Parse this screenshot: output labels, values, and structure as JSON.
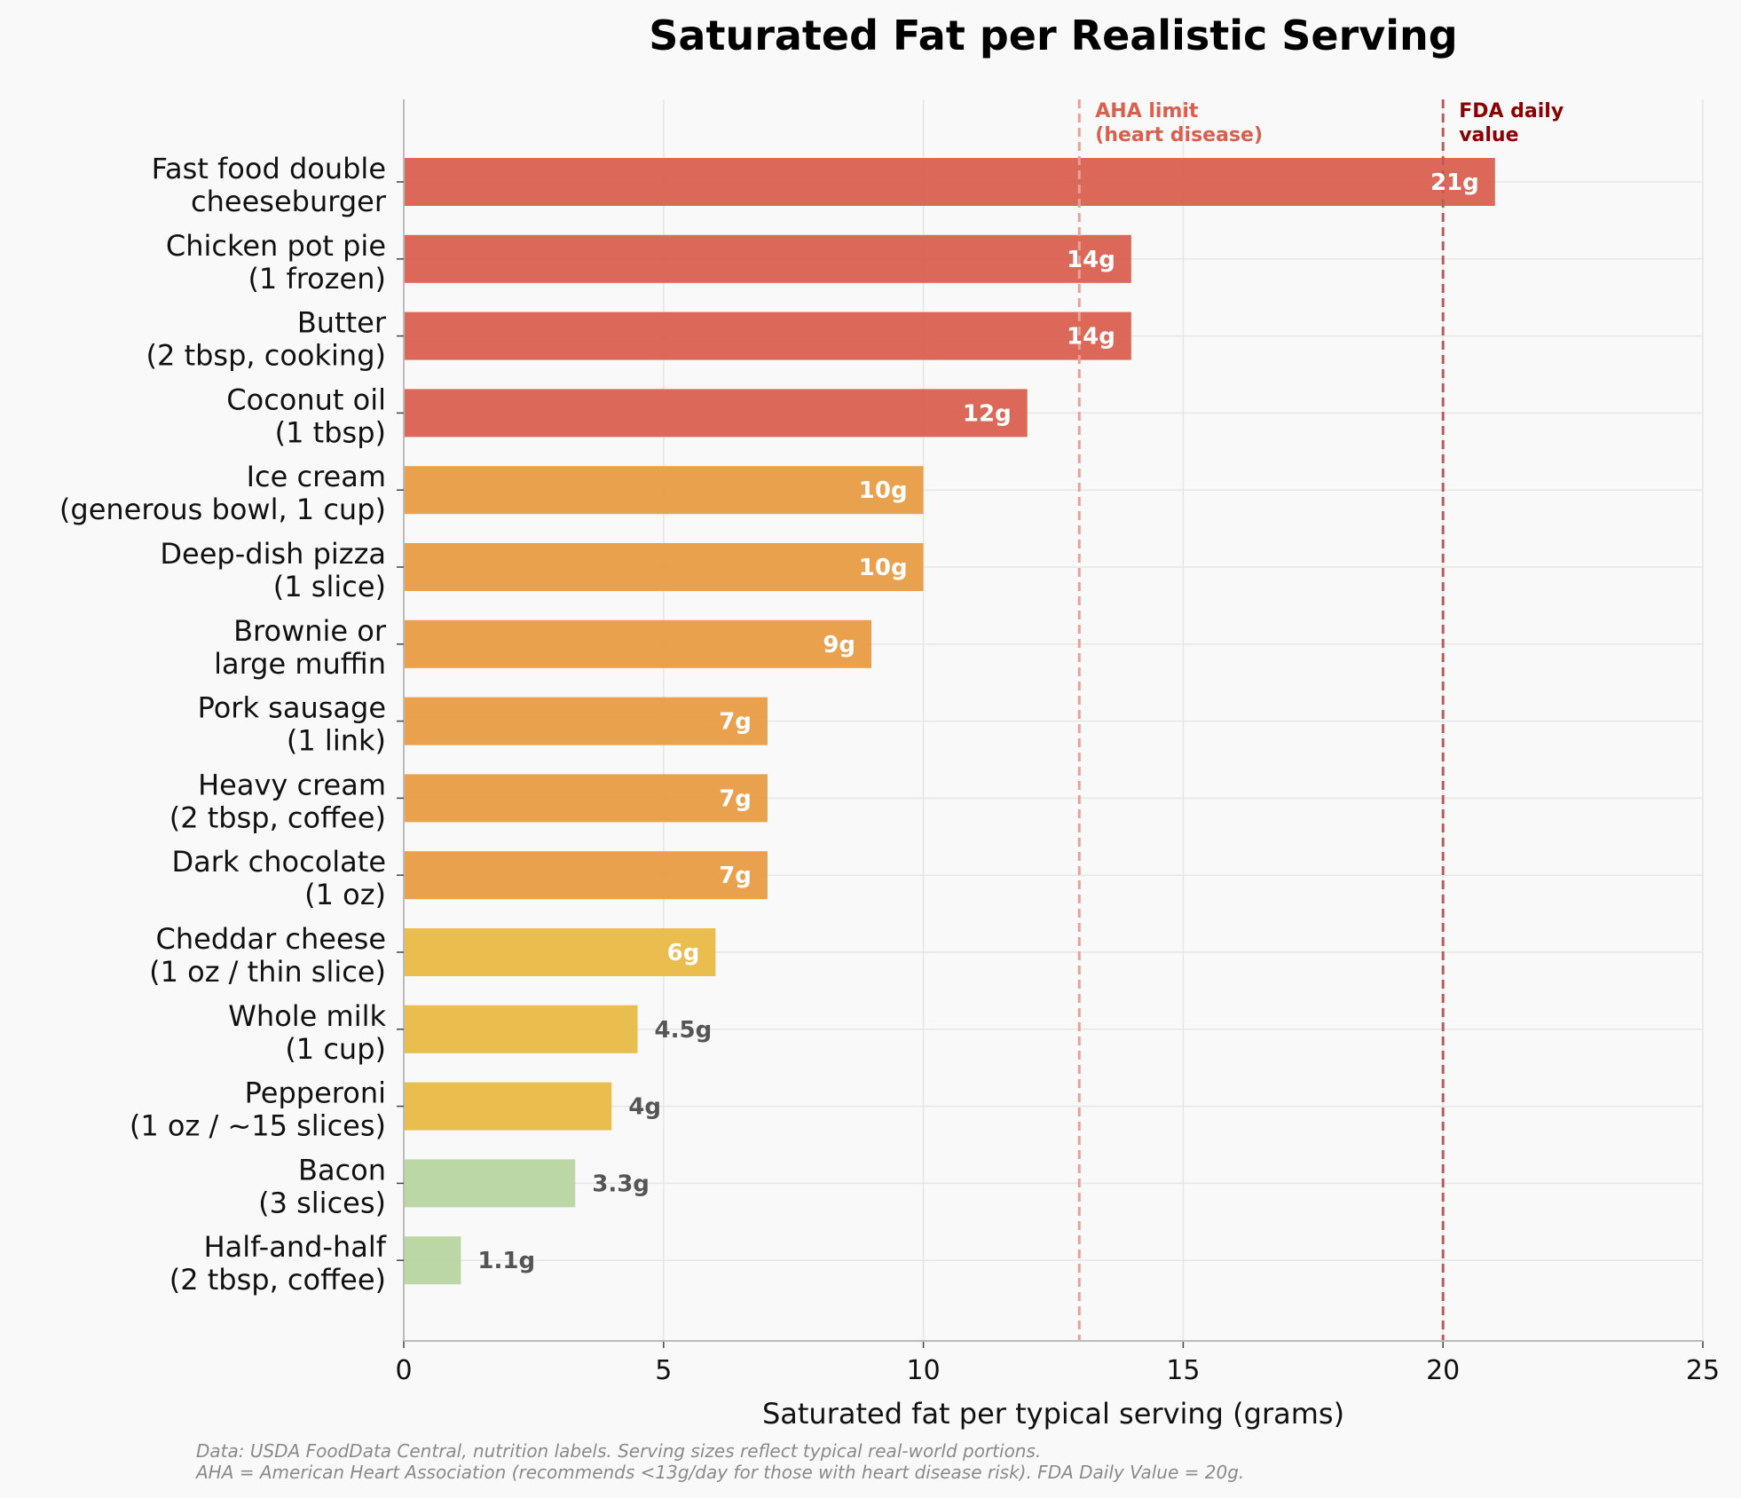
{
  "chart_data": {
    "type": "bar",
    "orientation": "horizontal",
    "title": "Saturated Fat per Realistic Serving",
    "xlabel": "Saturated fat per typical serving (grams)",
    "ylabel": "",
    "xlim": [
      0,
      25
    ],
    "xticks": [
      0,
      5,
      10,
      15,
      20,
      25
    ],
    "grid": true,
    "categories": [
      [
        "Fast food double",
        "cheeseburger"
      ],
      [
        "Chicken pot pie",
        "(1 frozen)"
      ],
      [
        "Butter",
        "(2 tbsp, cooking)"
      ],
      [
        "Coconut oil",
        "(1 tbsp)"
      ],
      [
        "Ice cream",
        "(generous bowl, 1 cup)"
      ],
      [
        "Deep-dish pizza",
        "(1 slice)"
      ],
      [
        "Brownie or",
        "large muffin"
      ],
      [
        "Pork sausage",
        "(1 link)"
      ],
      [
        "Heavy cream",
        "(2 tbsp, coffee)"
      ],
      [
        "Dark chocolate",
        "(1 oz)"
      ],
      [
        "Cheddar cheese",
        "(1 oz / thin slice)"
      ],
      [
        "Whole milk",
        "(1 cup)"
      ],
      [
        "Pepperoni",
        "(1 oz / ~15 slices)"
      ],
      [
        "Bacon",
        "(3 slices)"
      ],
      [
        "Half-and-half",
        "(2 tbsp, coffee)"
      ]
    ],
    "values": [
      21,
      14,
      14,
      12,
      10,
      10,
      9,
      7,
      7,
      7,
      6,
      4.5,
      4,
      3.3,
      1.1
    ],
    "value_labels": [
      "21g",
      "14g",
      "14g",
      "12g",
      "10g",
      "10g",
      "9g",
      "7g",
      "7g",
      "7g",
      "6g",
      "4.5g",
      "4g",
      "3.3g",
      "1.1g"
    ],
    "bar_colors": [
      "#d9604f",
      "#d9604f",
      "#d9604f",
      "#d9604f",
      "#e89c45",
      "#e89c45",
      "#e89c45",
      "#e89c45",
      "#e89c45",
      "#e89c45",
      "#e8b944",
      "#e8b944",
      "#e8b944",
      "#b7d5a0",
      "#b7d5a0"
    ],
    "reference_lines": [
      {
        "value": 13,
        "label": [
          "AHA limit",
          "(heart disease)"
        ],
        "color": "#e8a097",
        "label_color": "#d9604f"
      },
      {
        "value": 20,
        "label": [
          "FDA daily",
          "value"
        ],
        "color": "#b85c5c",
        "label_color": "#8b0000"
      }
    ],
    "footnote": [
      "Data: USDA FoodData Central, nutrition labels. Serving sizes reflect typical real-world portions.",
      "AHA = American Heart Association (recommends <13g/day for those with heart disease risk). FDA Daily Value = 20g."
    ]
  }
}
